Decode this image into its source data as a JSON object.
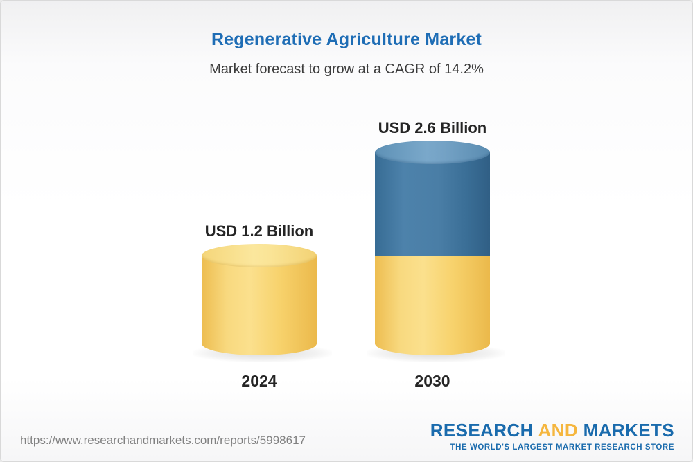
{
  "header": {
    "title": "Regenerative Agriculture Market",
    "subtitle": "Market forecast to grow at a CAGR of 14.2%"
  },
  "chart_data": {
    "type": "bar",
    "style": "3d-cylinder-stacked",
    "categories": [
      "2024",
      "2030"
    ],
    "values": [
      1.2,
      2.6
    ],
    "unit": "USD Billion",
    "value_labels": [
      "USD 1.2 Billion",
      "USD 2.6 Billion"
    ],
    "series": [
      {
        "name": "base-2024",
        "color": "#F6CE63",
        "values": [
          1.2,
          1.2
        ]
      },
      {
        "name": "growth-to-2030",
        "color": "#3E75A4",
        "values": [
          0,
          1.4
        ]
      }
    ],
    "cagr": "14.2%",
    "ylim": [
      0,
      2.8
    ],
    "grid": false,
    "legend": "none"
  },
  "footer": {
    "url": "https://www.researchandmarkets.com/reports/5998617",
    "logo": {
      "word1": "RESEARCH",
      "word2": "AND",
      "word3": "MARKETS",
      "tagline": "THE WORLD'S LARGEST MARKET RESEARCH STORE"
    }
  },
  "colors": {
    "title": "#1E6DB5",
    "subtitle": "#3B3B3B",
    "bar_yellow": "#F6CE63",
    "bar_blue": "#3E75A4",
    "logo_blue": "#1A6BAD",
    "logo_yellow": "#F5B63E",
    "url_gray": "#808080"
  }
}
